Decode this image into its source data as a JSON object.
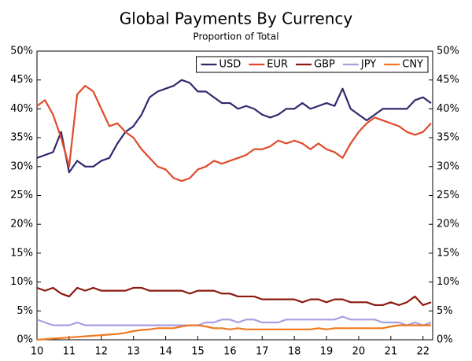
{
  "chart_data": {
    "type": "line",
    "title": "Global Payments By Currency",
    "subtitle": "Proportion of Total",
    "x": [
      10,
      10.25,
      10.5,
      10.75,
      11,
      11.25,
      11.5,
      11.75,
      12,
      12.25,
      12.5,
      12.75,
      13,
      13.25,
      13.5,
      13.75,
      14,
      14.25,
      14.5,
      14.75,
      15,
      15.25,
      15.5,
      15.75,
      16,
      16.25,
      16.5,
      16.75,
      17,
      17.25,
      17.5,
      17.75,
      18,
      18.25,
      18.5,
      18.75,
      19,
      19.25,
      19.5,
      19.75,
      20,
      20.25,
      20.5,
      20.75,
      21,
      21.25,
      21.5,
      21.75,
      22,
      22.25
    ],
    "series": [
      {
        "name": "USD",
        "color": "#2e2a6e",
        "values": [
          31.5,
          32,
          32.5,
          36,
          29,
          31,
          30,
          30,
          31,
          31.5,
          34,
          36,
          37,
          39,
          42,
          43,
          43.5,
          44,
          45,
          44.5,
          43,
          43,
          42,
          41,
          41,
          40,
          40.5,
          40,
          39,
          38.5,
          39,
          40,
          40,
          41,
          40,
          40.5,
          41,
          40.5,
          43.5,
          40,
          39,
          38,
          39,
          40,
          40,
          40,
          40,
          41.5,
          42,
          41
        ]
      },
      {
        "name": "EUR",
        "color": "#e04a2a",
        "values": [
          40.5,
          41.5,
          39,
          35,
          30,
          42.5,
          44,
          43,
          40,
          37,
          37.5,
          36,
          35,
          33,
          31.5,
          30,
          29.5,
          28,
          27.5,
          28,
          29.5,
          30,
          31,
          30.5,
          31,
          31.5,
          32,
          33,
          33,
          33.5,
          34.5,
          34,
          34.5,
          34,
          33,
          34,
          33,
          32.5,
          31.5,
          34,
          36,
          37.5,
          38.5,
          38,
          37.5,
          37,
          36,
          35.5,
          36,
          37.5
        ]
      },
      {
        "name": "GBP",
        "color": "#8b1a10",
        "values": [
          9,
          8.5,
          9,
          8,
          7.5,
          9,
          8.5,
          9,
          8.5,
          8.5,
          8.5,
          8.5,
          9,
          9,
          8.5,
          8.5,
          8.5,
          8.5,
          8.5,
          8,
          8.5,
          8.5,
          8.5,
          8,
          8,
          7.5,
          7.5,
          7.5,
          7,
          7,
          7,
          7,
          7,
          6.5,
          7,
          7,
          6.5,
          7,
          7,
          6.5,
          6.5,
          6.5,
          6,
          6,
          6.5,
          6,
          6.5,
          7.5,
          6,
          6.5
        ]
      },
      {
        "name": "JPY",
        "color": "#a99ee0",
        "values": [
          3.5,
          3,
          2.5,
          2.5,
          2.5,
          3,
          2.5,
          2.5,
          2.5,
          2.5,
          2.5,
          2.5,
          2.5,
          2.5,
          2.5,
          2.5,
          2.5,
          2.5,
          2.5,
          2.5,
          2.5,
          3,
          3,
          3.5,
          3.5,
          3,
          3.5,
          3.5,
          3,
          3,
          3,
          3.5,
          3.5,
          3.5,
          3.5,
          3.5,
          3.5,
          3.5,
          4,
          3.5,
          3.5,
          3.5,
          3.5,
          3,
          3,
          3,
          2.5,
          3,
          2.5,
          3
        ]
      },
      {
        "name": "CNY",
        "color": "#f07820",
        "values": [
          0,
          0.1,
          0.2,
          0.3,
          0.4,
          0.5,
          0.6,
          0.7,
          0.8,
          0.9,
          1,
          1.2,
          1.5,
          1.7,
          1.8,
          2,
          2,
          2,
          2.3,
          2.5,
          2.5,
          2.3,
          2,
          2,
          1.8,
          2,
          1.8,
          1.8,
          1.8,
          1.8,
          1.8,
          1.8,
          1.8,
          1.8,
          1.8,
          2,
          1.8,
          2,
          2,
          2,
          2,
          2,
          2,
          2,
          2.3,
          2.5,
          2.5,
          2.5,
          2.5,
          2.5
        ]
      }
    ],
    "xlim": [
      10,
      22.3
    ],
    "xticks": [
      10,
      11,
      12,
      13,
      14,
      15,
      16,
      17,
      18,
      19,
      20,
      21,
      22
    ],
    "ylim": [
      0,
      50
    ],
    "yticks": [
      {
        "value": 0,
        "label": "0%"
      },
      {
        "value": 5,
        "label": "5%"
      },
      {
        "value": 10,
        "label": "10%"
      },
      {
        "value": 15,
        "label": "15%"
      },
      {
        "value": 20,
        "label": "20%"
      },
      {
        "value": 25,
        "label": "25%"
      },
      {
        "value": 30,
        "label": "30%"
      },
      {
        "value": 35,
        "label": "35%"
      },
      {
        "value": 40,
        "label": "40%"
      },
      {
        "value": 45,
        "label": "45%"
      },
      {
        "value": 50,
        "label": "50%"
      }
    ],
    "y2lim": [
      0,
      50
    ],
    "y2ticks": [
      {
        "value": 0,
        "label": "0%"
      },
      {
        "value": 5,
        "label": "5%"
      },
      {
        "value": 10,
        "label": "10%"
      },
      {
        "value": 15,
        "label": "15%"
      },
      {
        "value": 20,
        "label": "20%"
      },
      {
        "value": 25,
        "label": "25%"
      },
      {
        "value": 30,
        "label": "30%"
      },
      {
        "value": 35,
        "label": "35%"
      },
      {
        "value": 40,
        "label": "40%"
      },
      {
        "value": 45,
        "label": "45%"
      },
      {
        "value": 50,
        "label": "50%"
      }
    ],
    "legend": "upper right"
  }
}
